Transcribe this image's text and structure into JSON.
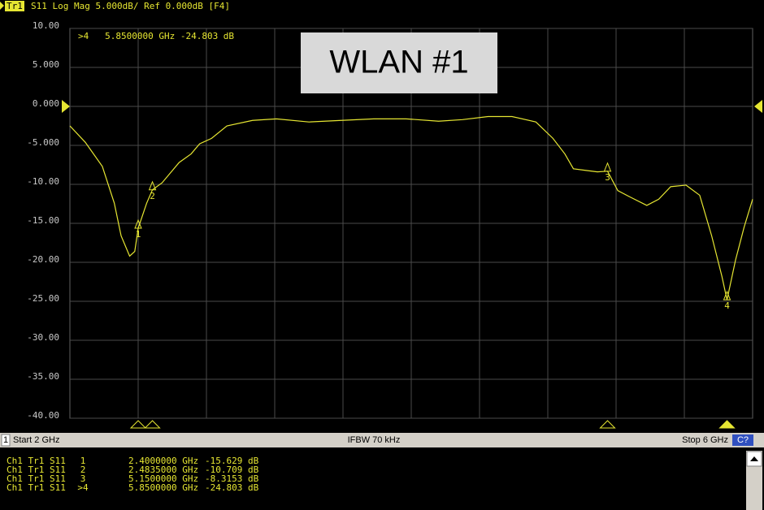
{
  "header": {
    "trace": "Tr1",
    "text": "S11 Log Mag 5.000dB/ Ref 0.000dB [F4]"
  },
  "chart_data": {
    "type": "line",
    "annotation": "WLAN #1",
    "readout": ">4   5.8500000 GHz -24.803 dB",
    "x": [
      2.0,
      2.09,
      2.19,
      2.26,
      2.3,
      2.35,
      2.38,
      2.4,
      2.45,
      2.4835,
      2.54,
      2.64,
      2.71,
      2.76,
      2.83,
      2.92,
      3.07,
      3.21,
      3.4,
      3.59,
      3.78,
      3.97,
      4.16,
      4.3,
      4.45,
      4.59,
      4.73,
      4.83,
      4.9,
      4.95,
      5.02,
      5.09,
      5.15,
      5.21,
      5.28,
      5.38,
      5.45,
      5.52,
      5.61,
      5.69,
      5.76,
      5.82,
      5.85,
      5.9,
      5.95,
      6.0
    ],
    "series": [
      {
        "color": "#e6e632",
        "values": [
          -2.5,
          -4.6,
          -7.7,
          -12.4,
          -16.6,
          -19.2,
          -18.6,
          -15.629,
          -12.4,
          -10.709,
          -9.8,
          -7.2,
          -6.1,
          -4.8,
          -4.1,
          -2.5,
          -1.8,
          -1.6,
          -2.0,
          -1.8,
          -1.6,
          -1.6,
          -1.9,
          -1.7,
          -1.3,
          -1.3,
          -2.0,
          -4.1,
          -6.1,
          -8.0,
          -8.2,
          -8.4,
          -8.3153,
          -10.8,
          -11.6,
          -12.7,
          -11.9,
          -10.3,
          -10.1,
          -11.4,
          -16.6,
          -21.8,
          -24.803,
          -19.7,
          -15.5,
          -11.9
        ]
      }
    ],
    "markers": [
      {
        "label": "1",
        "x": 2.4,
        "y": -15.629
      },
      {
        "label": "2",
        "x": 2.4835,
        "y": -10.709
      },
      {
        "label": "3",
        "x": 5.15,
        "y": -8.3153
      },
      {
        "label": "4",
        "x": 5.85,
        "y": -24.803
      }
    ],
    "xlim": [
      2,
      6
    ],
    "ylim": [
      -40,
      10
    ],
    "xticks": [
      2.4,
      2.8,
      3.2,
      3.6,
      4.0,
      4.4,
      4.8,
      5.2,
      5.6
    ],
    "yticks": [
      {
        "value": 10,
        "label": "10.00"
      },
      {
        "value": 5,
        "label": "5.000"
      },
      {
        "value": 0,
        "label": "0.000"
      },
      {
        "value": -5,
        "label": "-5.000"
      },
      {
        "value": -10,
        "label": "-10.00"
      },
      {
        "value": -15,
        "label": "-15.00"
      },
      {
        "value": -20,
        "label": "-20.00"
      },
      {
        "value": -25,
        "label": "-25.00"
      },
      {
        "value": -30,
        "label": "-30.00"
      },
      {
        "value": -35,
        "label": "-35.00"
      },
      {
        "value": -40,
        "label": "-40.00"
      }
    ],
    "grid": true
  },
  "status": {
    "channel": "1",
    "start": "Start 2 GHz",
    "ifbw": "IFBW 70 kHz",
    "stop": "Stop 6 GHz",
    "badge": "C?"
  },
  "marker_table": [
    [
      "Ch1 Tr1 S11",
      "1",
      "2.4000000 GHz",
      "-15.629 dB"
    ],
    [
      "Ch1 Tr1 S11",
      "2",
      "2.4835000 GHz",
      "-10.709 dB"
    ],
    [
      "Ch1 Tr1 S11",
      "3",
      "5.1500000 GHz",
      "-8.3153 dB"
    ],
    [
      "Ch1 Tr1 S11",
      ">4",
      "5.8500000 GHz",
      "-24.803 dB"
    ]
  ]
}
